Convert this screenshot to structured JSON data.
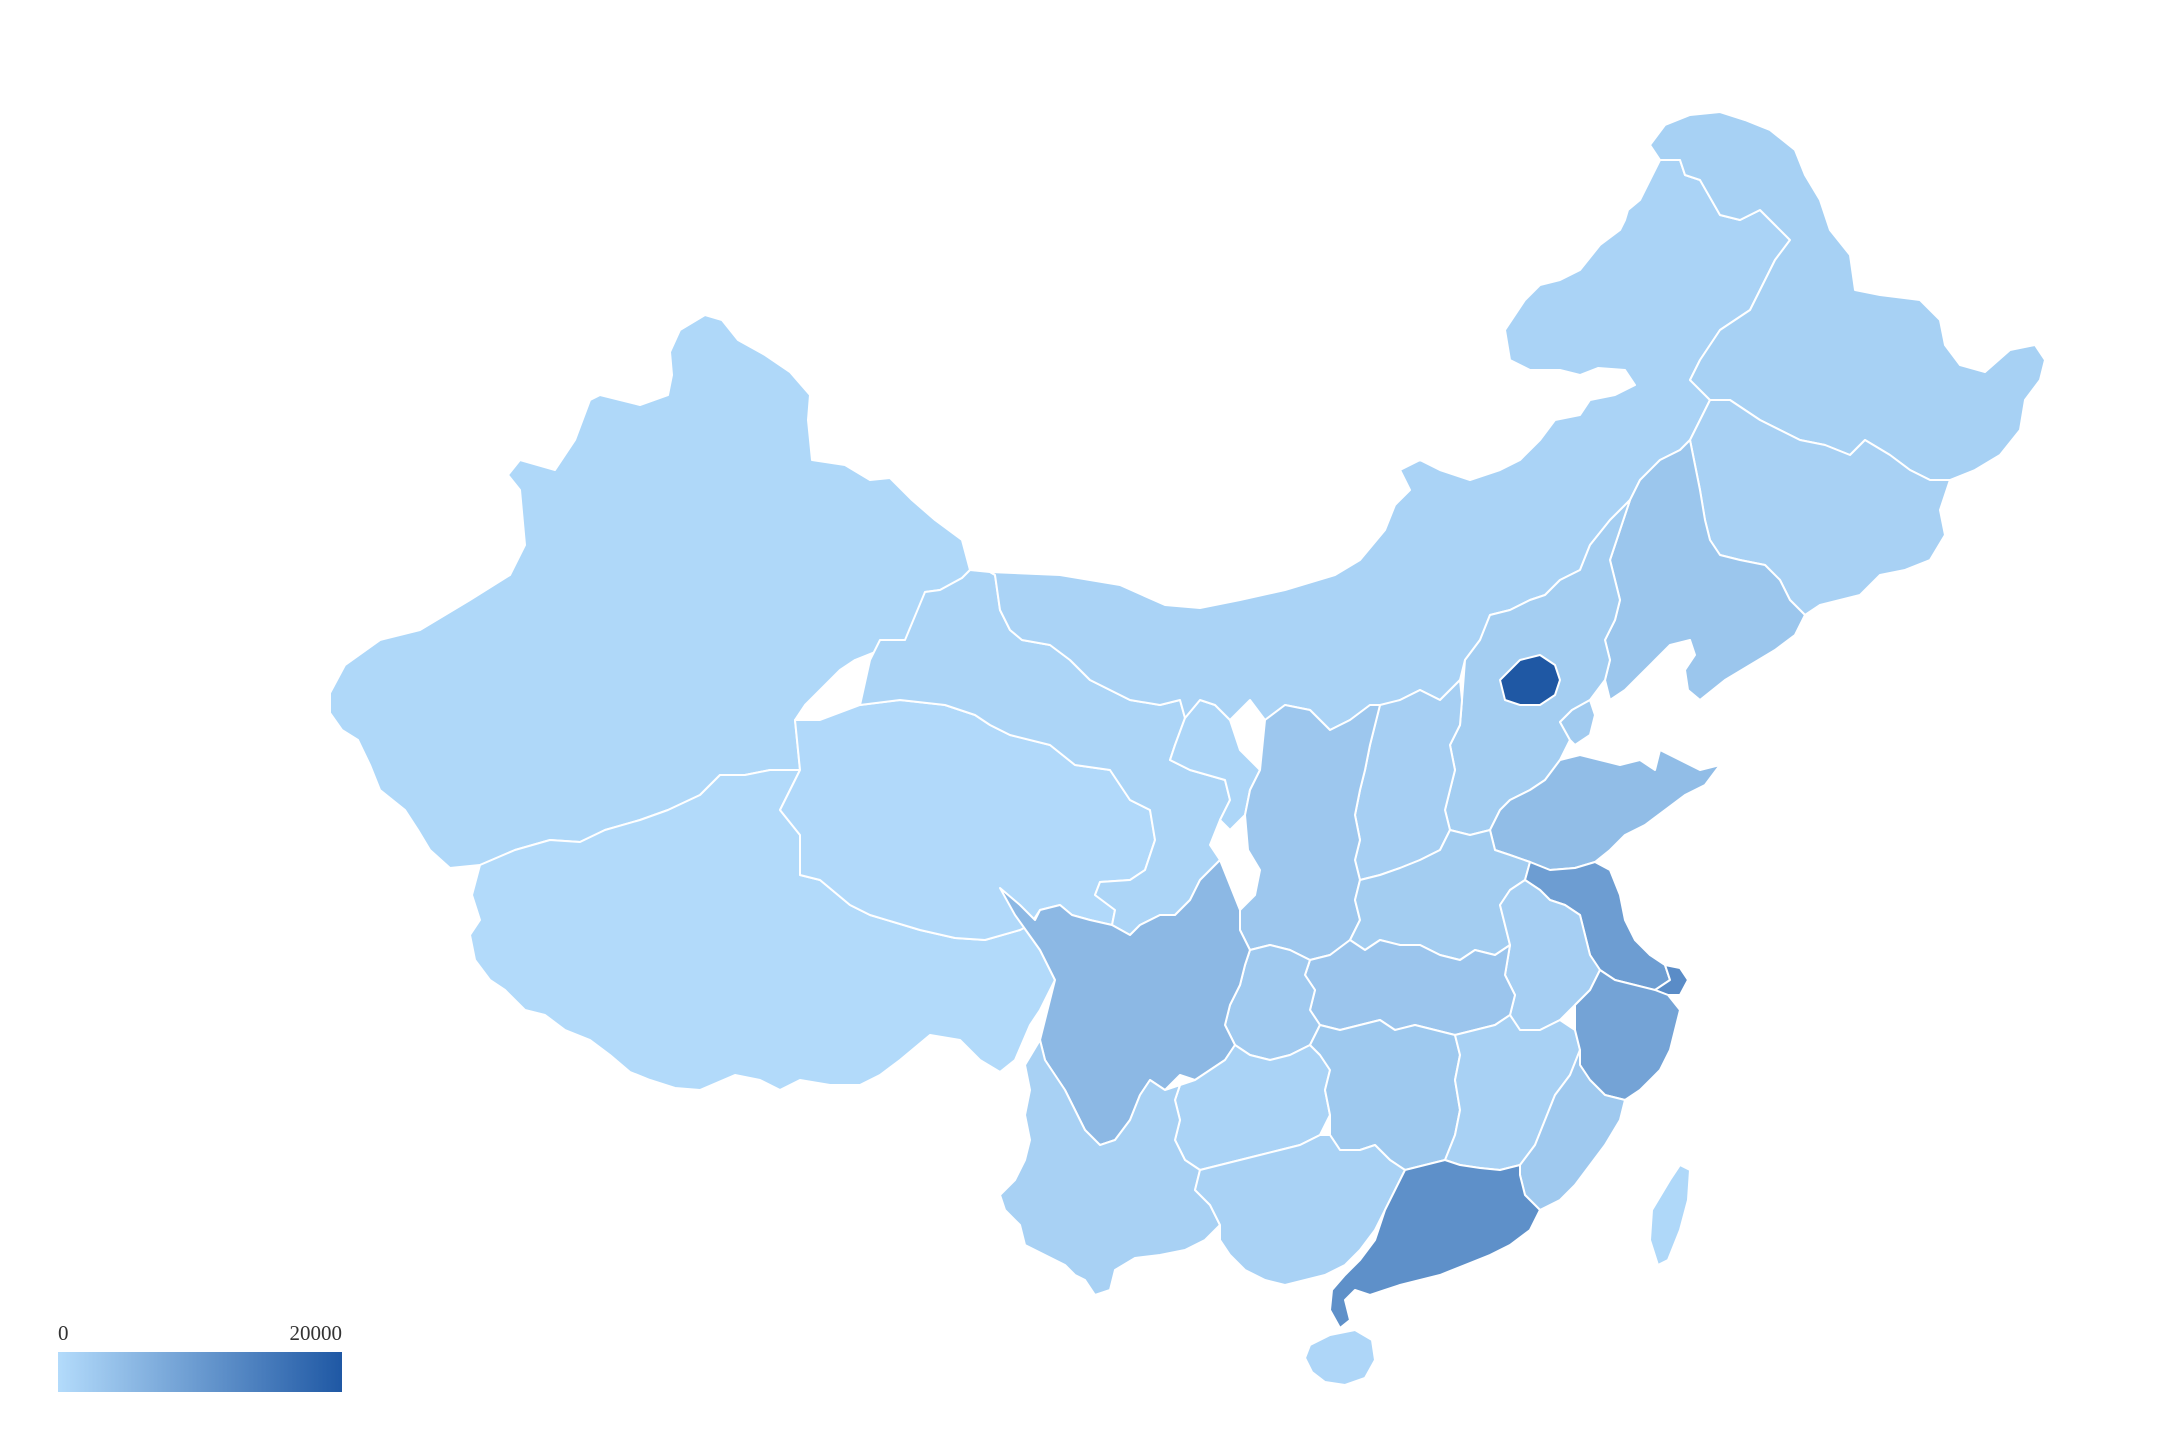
{
  "legend": {
    "min_label": "0",
    "max_label": "20000",
    "min": 0,
    "max": 20000,
    "color_low": "#b3dbfb",
    "color_high": "#1f58a4"
  },
  "regions": [
    {
      "id": "xinjiang",
      "value": 500
    },
    {
      "id": "tibet",
      "value": 200
    },
    {
      "id": "qinghai",
      "value": 300
    },
    {
      "id": "gansu",
      "value": 900
    },
    {
      "id": "inner-mongolia",
      "value": 1200
    },
    {
      "id": "heilongjiang",
      "value": 1600
    },
    {
      "id": "jilin",
      "value": 1500
    },
    {
      "id": "liaoning",
      "value": 3200
    },
    {
      "id": "hebei",
      "value": 2000
    },
    {
      "id": "beijing",
      "value": 20000
    },
    {
      "id": "tianjin",
      "value": 2500
    },
    {
      "id": "shandong",
      "value": 4600
    },
    {
      "id": "shanxi",
      "value": 1800
    },
    {
      "id": "shaanxi",
      "value": 3000
    },
    {
      "id": "ningxia",
      "value": 800
    },
    {
      "id": "henan",
      "value": 2200
    },
    {
      "id": "jiangsu",
      "value": 9500
    },
    {
      "id": "shanghai",
      "value": 12000
    },
    {
      "id": "anhui",
      "value": 1800
    },
    {
      "id": "hubei",
      "value": 3300
    },
    {
      "id": "chongqing",
      "value": 2600
    },
    {
      "id": "sichuan",
      "value": 5300
    },
    {
      "id": "zhejiang",
      "value": 8500
    },
    {
      "id": "hunan",
      "value": 2800
    },
    {
      "id": "jiangxi",
      "value": 1500
    },
    {
      "id": "fujian",
      "value": 2700
    },
    {
      "id": "guizhou",
      "value": 1200
    },
    {
      "id": "yunnan",
      "value": 1500
    },
    {
      "id": "guangxi",
      "value": 1300
    },
    {
      "id": "guangdong",
      "value": 11500
    },
    {
      "id": "hainan",
      "value": 700
    },
    {
      "id": "taiwan",
      "value": 500
    }
  ]
}
